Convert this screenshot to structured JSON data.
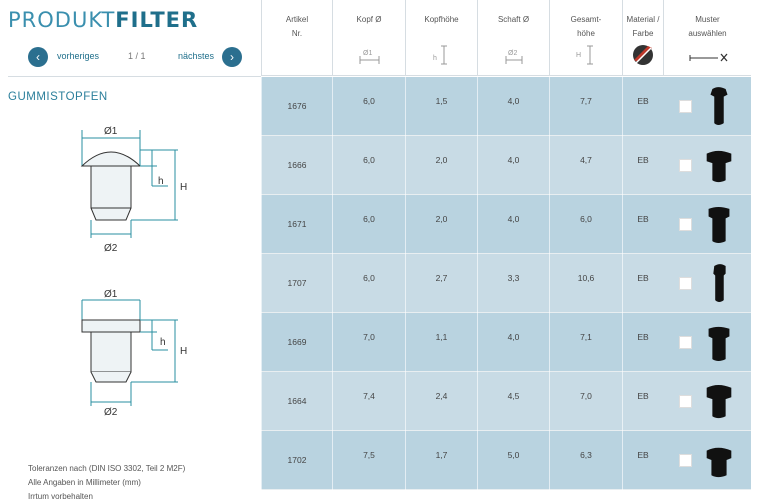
{
  "brand": {
    "thin": "PRODUKT",
    "bold": "FILTER"
  },
  "pager": {
    "prev": "vorheriges",
    "page": "1 / 1",
    "next": "nächstes",
    "prev_arrow": "‹",
    "next_arrow": "›"
  },
  "category": "GUMMISTOPFEN",
  "diagram_labels": {
    "d1": "Ø1",
    "d2": "Ø2",
    "h": "h",
    "H": "H"
  },
  "notes": [
    "Toleranzen nach (DIN ISO 3302, Teil 2 M2F)",
    "Alle Angaben in Millimeter (mm)",
    "Irrtum vorbehalten"
  ],
  "headers": [
    {
      "line1": "Artikel",
      "line2": "Nr.",
      "sym": ""
    },
    {
      "line1": "Kopf Ø",
      "line2": "",
      "sym": "Ø1"
    },
    {
      "line1": "Kopfhöhe",
      "line2": "",
      "sym": "h"
    },
    {
      "line1": "Schaft Ø",
      "line2": "",
      "sym": "Ø2"
    },
    {
      "line1": "Gesamt-",
      "line2": "höhe",
      "sym": "H"
    },
    {
      "line1": "Material /",
      "line2": "Farbe",
      "sym": ""
    },
    {
      "line1": "Muster",
      "line2": "auswählen",
      "sym": ""
    }
  ],
  "rows": [
    {
      "nr": "1676",
      "kopf": "6,0",
      "kopfhoehe": "1,5",
      "schaft": "4,0",
      "gesamt": "7,7",
      "mat": "EB"
    },
    {
      "nr": "1666",
      "kopf": "6,0",
      "kopfhoehe": "2,0",
      "schaft": "4,0",
      "gesamt": "4,7",
      "mat": "EB"
    },
    {
      "nr": "1671",
      "kopf": "6,0",
      "kopfhoehe": "2,0",
      "schaft": "4,0",
      "gesamt": "6,0",
      "mat": "EB"
    },
    {
      "nr": "1707",
      "kopf": "6,0",
      "kopfhoehe": "2,7",
      "schaft": "3,3",
      "gesamt": "10,6",
      "mat": "EB"
    },
    {
      "nr": "1669",
      "kopf": "7,0",
      "kopfhoehe": "1,1",
      "schaft": "4,0",
      "gesamt": "7,1",
      "mat": "EB"
    },
    {
      "nr": "1664",
      "kopf": "7,4",
      "kopfhoehe": "2,4",
      "schaft": "4,5",
      "gesamt": "7,0",
      "mat": "EB"
    },
    {
      "nr": "1702",
      "kopf": "7,5",
      "kopfhoehe": "1,7",
      "schaft": "5,0",
      "gesamt": "6,3",
      "mat": "EB"
    }
  ]
}
